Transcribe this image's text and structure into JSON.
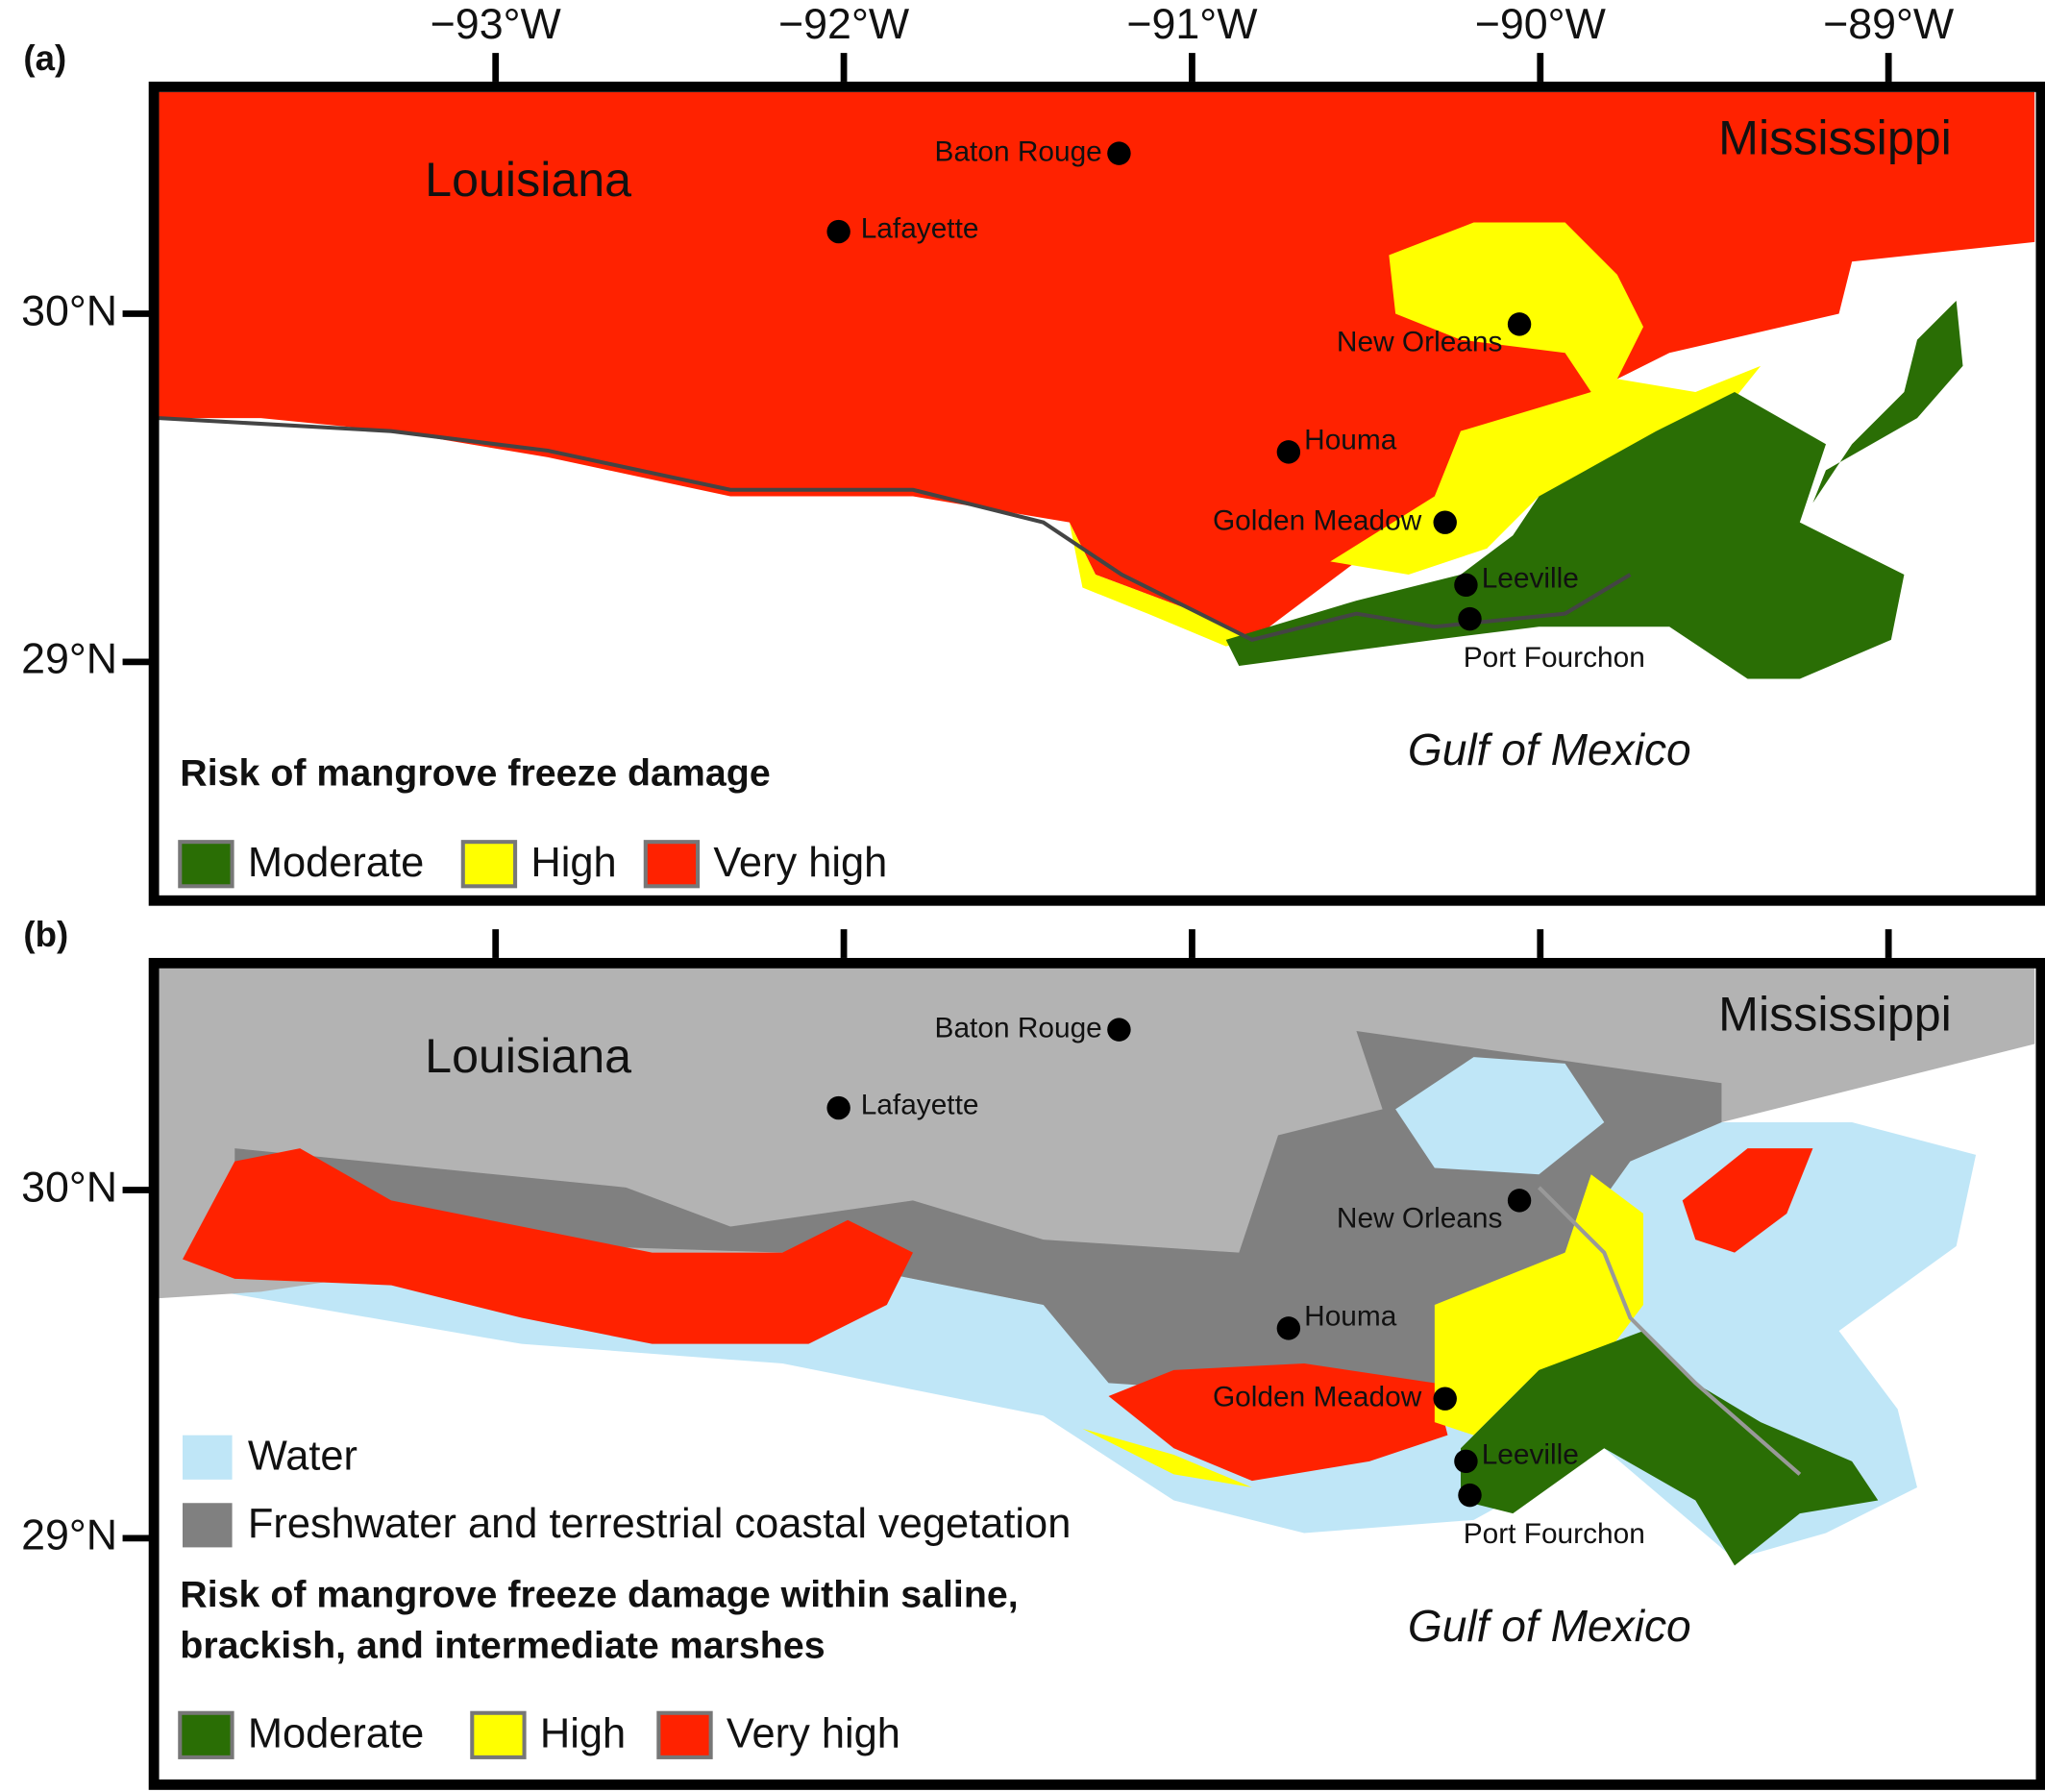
{
  "lon_ticks": [
    {
      "value": -93,
      "label": "−93°W"
    },
    {
      "value": -92,
      "label": "−92°W"
    },
    {
      "value": -91,
      "label": "−91°W"
    },
    {
      "value": -90,
      "label": "−90°W"
    },
    {
      "value": -89,
      "label": "−89°W"
    }
  ],
  "lat_ticks": [
    {
      "value": 30,
      "label": "30°N"
    },
    {
      "value": 29,
      "label": "29°N"
    }
  ],
  "panels": [
    {
      "label": "(a)",
      "states": [
        "Louisiana",
        "Mississippi"
      ],
      "sea": "Gulf of Mexico",
      "cities": [
        "Baton Rouge",
        "Lafayette",
        "New Orleans",
        "Houma",
        "Golden Meadow",
        "Leeville",
        "Port Fourchon"
      ],
      "legend": {
        "title_lines": [
          "Risk of mangrove freeze damage"
        ],
        "items": [
          "Moderate",
          "High",
          "Very high"
        ]
      }
    },
    {
      "label": "(b)",
      "states": [
        "Louisiana",
        "Mississippi"
      ],
      "sea": "Gulf of Mexico",
      "cities": [
        "Baton Rouge",
        "Lafayette",
        "New Orleans",
        "Houma",
        "Golden Meadow",
        "Leeville",
        "Port Fourchon"
      ],
      "legend": {
        "extra": [
          "Water",
          "Freshwater and terrestrial coastal vegetation"
        ],
        "title_lines": [
          "Risk of mangrove freeze damage within saline,",
          "brackish, and intermediate marshes"
        ],
        "items": [
          "Moderate",
          "High",
          "Very high"
        ]
      }
    }
  ]
}
